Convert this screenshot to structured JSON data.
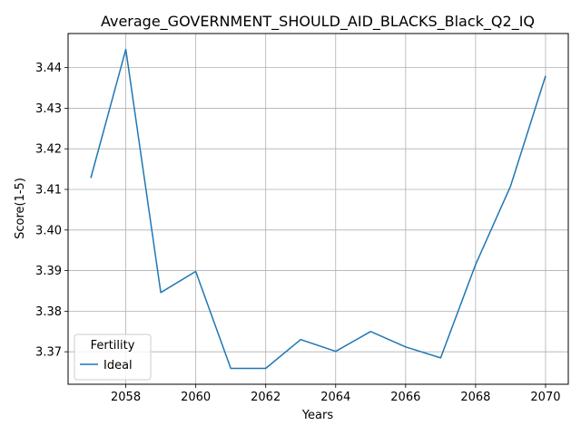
{
  "chart_data": {
    "type": "line",
    "title": "Average_GOVERNMENT_SHOULD_AID_BLACKS_Black_Q2_IQ",
    "xlabel": "Years",
    "ylabel": "Score(1-5)",
    "x": [
      2057,
      2058,
      2059,
      2060,
      2061,
      2062,
      2063,
      2064,
      2065,
      2066,
      2067,
      2068,
      2069,
      2070
    ],
    "series": [
      {
        "name": "Ideal",
        "color": "#1f77b4",
        "values": [
          3.4128,
          3.4445,
          3.3846,
          3.3898,
          3.3659,
          3.3659,
          3.373,
          3.3701,
          3.375,
          3.3712,
          3.3685,
          3.3915,
          3.4108,
          3.438
        ]
      }
    ],
    "xlim": [
      2056.35,
      2070.65
    ],
    "ylim": [
      3.362,
      3.4484
    ],
    "xticks": [
      2058,
      2060,
      2062,
      2064,
      2066,
      2068,
      2070
    ],
    "yticks": [
      3.37,
      3.38,
      3.39,
      3.4,
      3.41,
      3.42,
      3.43,
      3.44
    ],
    "ytick_labels": [
      "3.37",
      "3.38",
      "3.39",
      "3.40",
      "3.41",
      "3.42",
      "3.43",
      "3.44"
    ],
    "grid": true,
    "legend": {
      "title": "Fertility",
      "placement": "lower-left"
    }
  }
}
